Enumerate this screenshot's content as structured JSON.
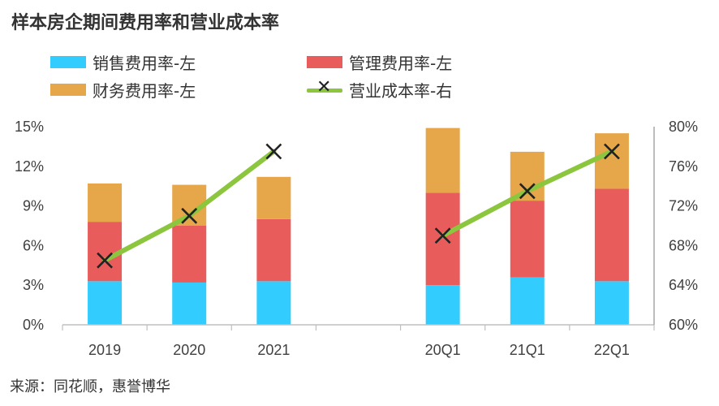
{
  "title": "样本房企期间费用率和营业成本率",
  "source": "来源：同花顺，惠誉博华",
  "legend": {
    "sales": "销售费用率-左",
    "admin": "管理费用率-左",
    "finance": "财务费用率-左",
    "cost": "营业成本率-右"
  },
  "colors": {
    "sales": "#33ccff",
    "admin": "#e85c5c",
    "finance": "#e6a64a",
    "cost": "#8cc63f",
    "marker": "#222222"
  },
  "chart_data": {
    "type": "bar",
    "stacked": true,
    "categories": [
      "2019",
      "2020",
      "2021",
      "",
      "20Q1",
      "21Q1",
      "22Q1"
    ],
    "series": [
      {
        "name": "销售费用率-左",
        "key": "sales",
        "axis": "left",
        "values": [
          3.3,
          3.2,
          3.3,
          null,
          3.0,
          3.6,
          3.3
        ]
      },
      {
        "name": "管理费用率-左",
        "key": "admin",
        "axis": "left",
        "values": [
          4.5,
          4.3,
          4.7,
          null,
          7.0,
          5.8,
          7.0
        ]
      },
      {
        "name": "财务费用率-左",
        "key": "finance",
        "axis": "left",
        "values": [
          2.9,
          3.1,
          3.2,
          null,
          4.9,
          3.7,
          4.2
        ]
      },
      {
        "name": "营业成本率-右",
        "key": "cost",
        "type": "line",
        "axis": "right",
        "values": [
          66.5,
          71.0,
          77.5,
          null,
          69.0,
          73.5,
          77.5
        ]
      }
    ],
    "ylim_left": [
      0,
      15
    ],
    "ylim_right": [
      60,
      80
    ],
    "yticks_left": [
      "0%",
      "3%",
      "6%",
      "9%",
      "12%",
      "15%"
    ],
    "yticks_right": [
      "60%",
      "64%",
      "68%",
      "72%",
      "76%",
      "80%"
    ],
    "grid": false,
    "legend_position": "top"
  }
}
